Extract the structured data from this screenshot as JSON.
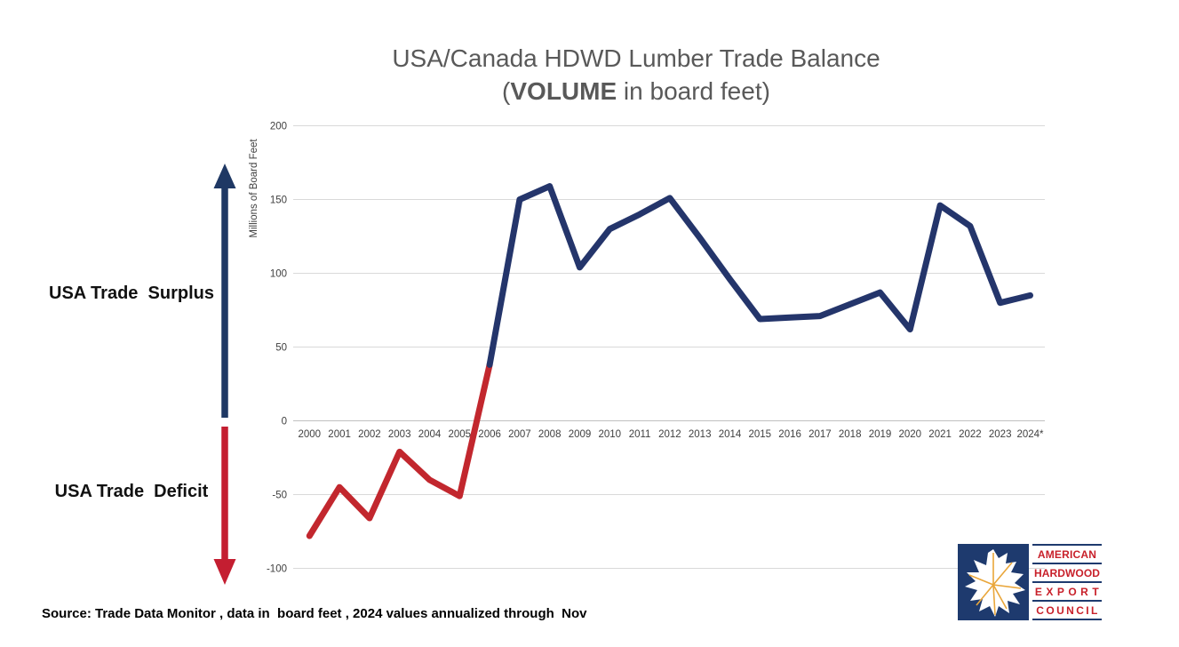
{
  "title": {
    "line1": "USA/Canada HDWD Lumber Trade Balance",
    "line2_prefix": "(",
    "line2_bold": "VOLUME",
    "line2_rest": " in board feet)"
  },
  "annotations": {
    "surplus_label": "USA Trade  Surplus",
    "deficit_label": "USA Trade  Deficit"
  },
  "source_note": "Source: Trade Data Monitor , data in  board feet , 2024 values annualized through  Nov",
  "logo": {
    "lines": [
      "AMERICAN",
      "HARDWOOD",
      "EXPORT",
      "COUNCIL"
    ],
    "leaf_icon": "oak-leaf-icon"
  },
  "colors": {
    "line_deficit_red": "#c2272e",
    "line_surplus_blue": "#24356b",
    "arrow_up_blue": "#1f3864",
    "arrow_down_red": "#c41e31",
    "title_gray": "#595959",
    "axis_text": "#404040",
    "gridline": "#d9d9d9",
    "zero_line": "#c0c0c0",
    "logo_navy": "#1e3a6e",
    "logo_red": "#c8202a",
    "leaf_vein_orange": "#e9a63a"
  },
  "chart_data": {
    "type": "line",
    "title": "USA/Canada HDWD Lumber Trade Balance (VOLUME in board feet)",
    "ylabel": "Millions of Board Feet",
    "xlabel": "",
    "categories": [
      "2000",
      "2001",
      "2002",
      "2003",
      "2004",
      "2005",
      "2006",
      "2007",
      "2008",
      "2009",
      "2010",
      "2011",
      "2012",
      "2013",
      "2014",
      "2015",
      "2016",
      "2017",
      "2018",
      "2019",
      "2020",
      "2021",
      "2022",
      "2023",
      "2024*"
    ],
    "values": [
      -78,
      -45,
      -66,
      -21,
      -40,
      -51,
      38,
      150,
      159,
      104,
      130,
      140,
      151,
      124,
      96,
      69,
      70,
      71,
      79,
      87,
      62,
      146,
      132,
      80,
      85
    ],
    "segments": [
      {
        "name": "deficit-era",
        "color_key": "line_deficit_red",
        "from_index": 0,
        "to_index": 6
      },
      {
        "name": "surplus-era",
        "color_key": "line_surplus_blue",
        "from_index": 6,
        "to_index": 24
      }
    ],
    "yticks": [
      -100,
      -50,
      0,
      50,
      100,
      150,
      200
    ],
    "ylim": [
      -100,
      200
    ],
    "grid": true,
    "legend": "none"
  }
}
